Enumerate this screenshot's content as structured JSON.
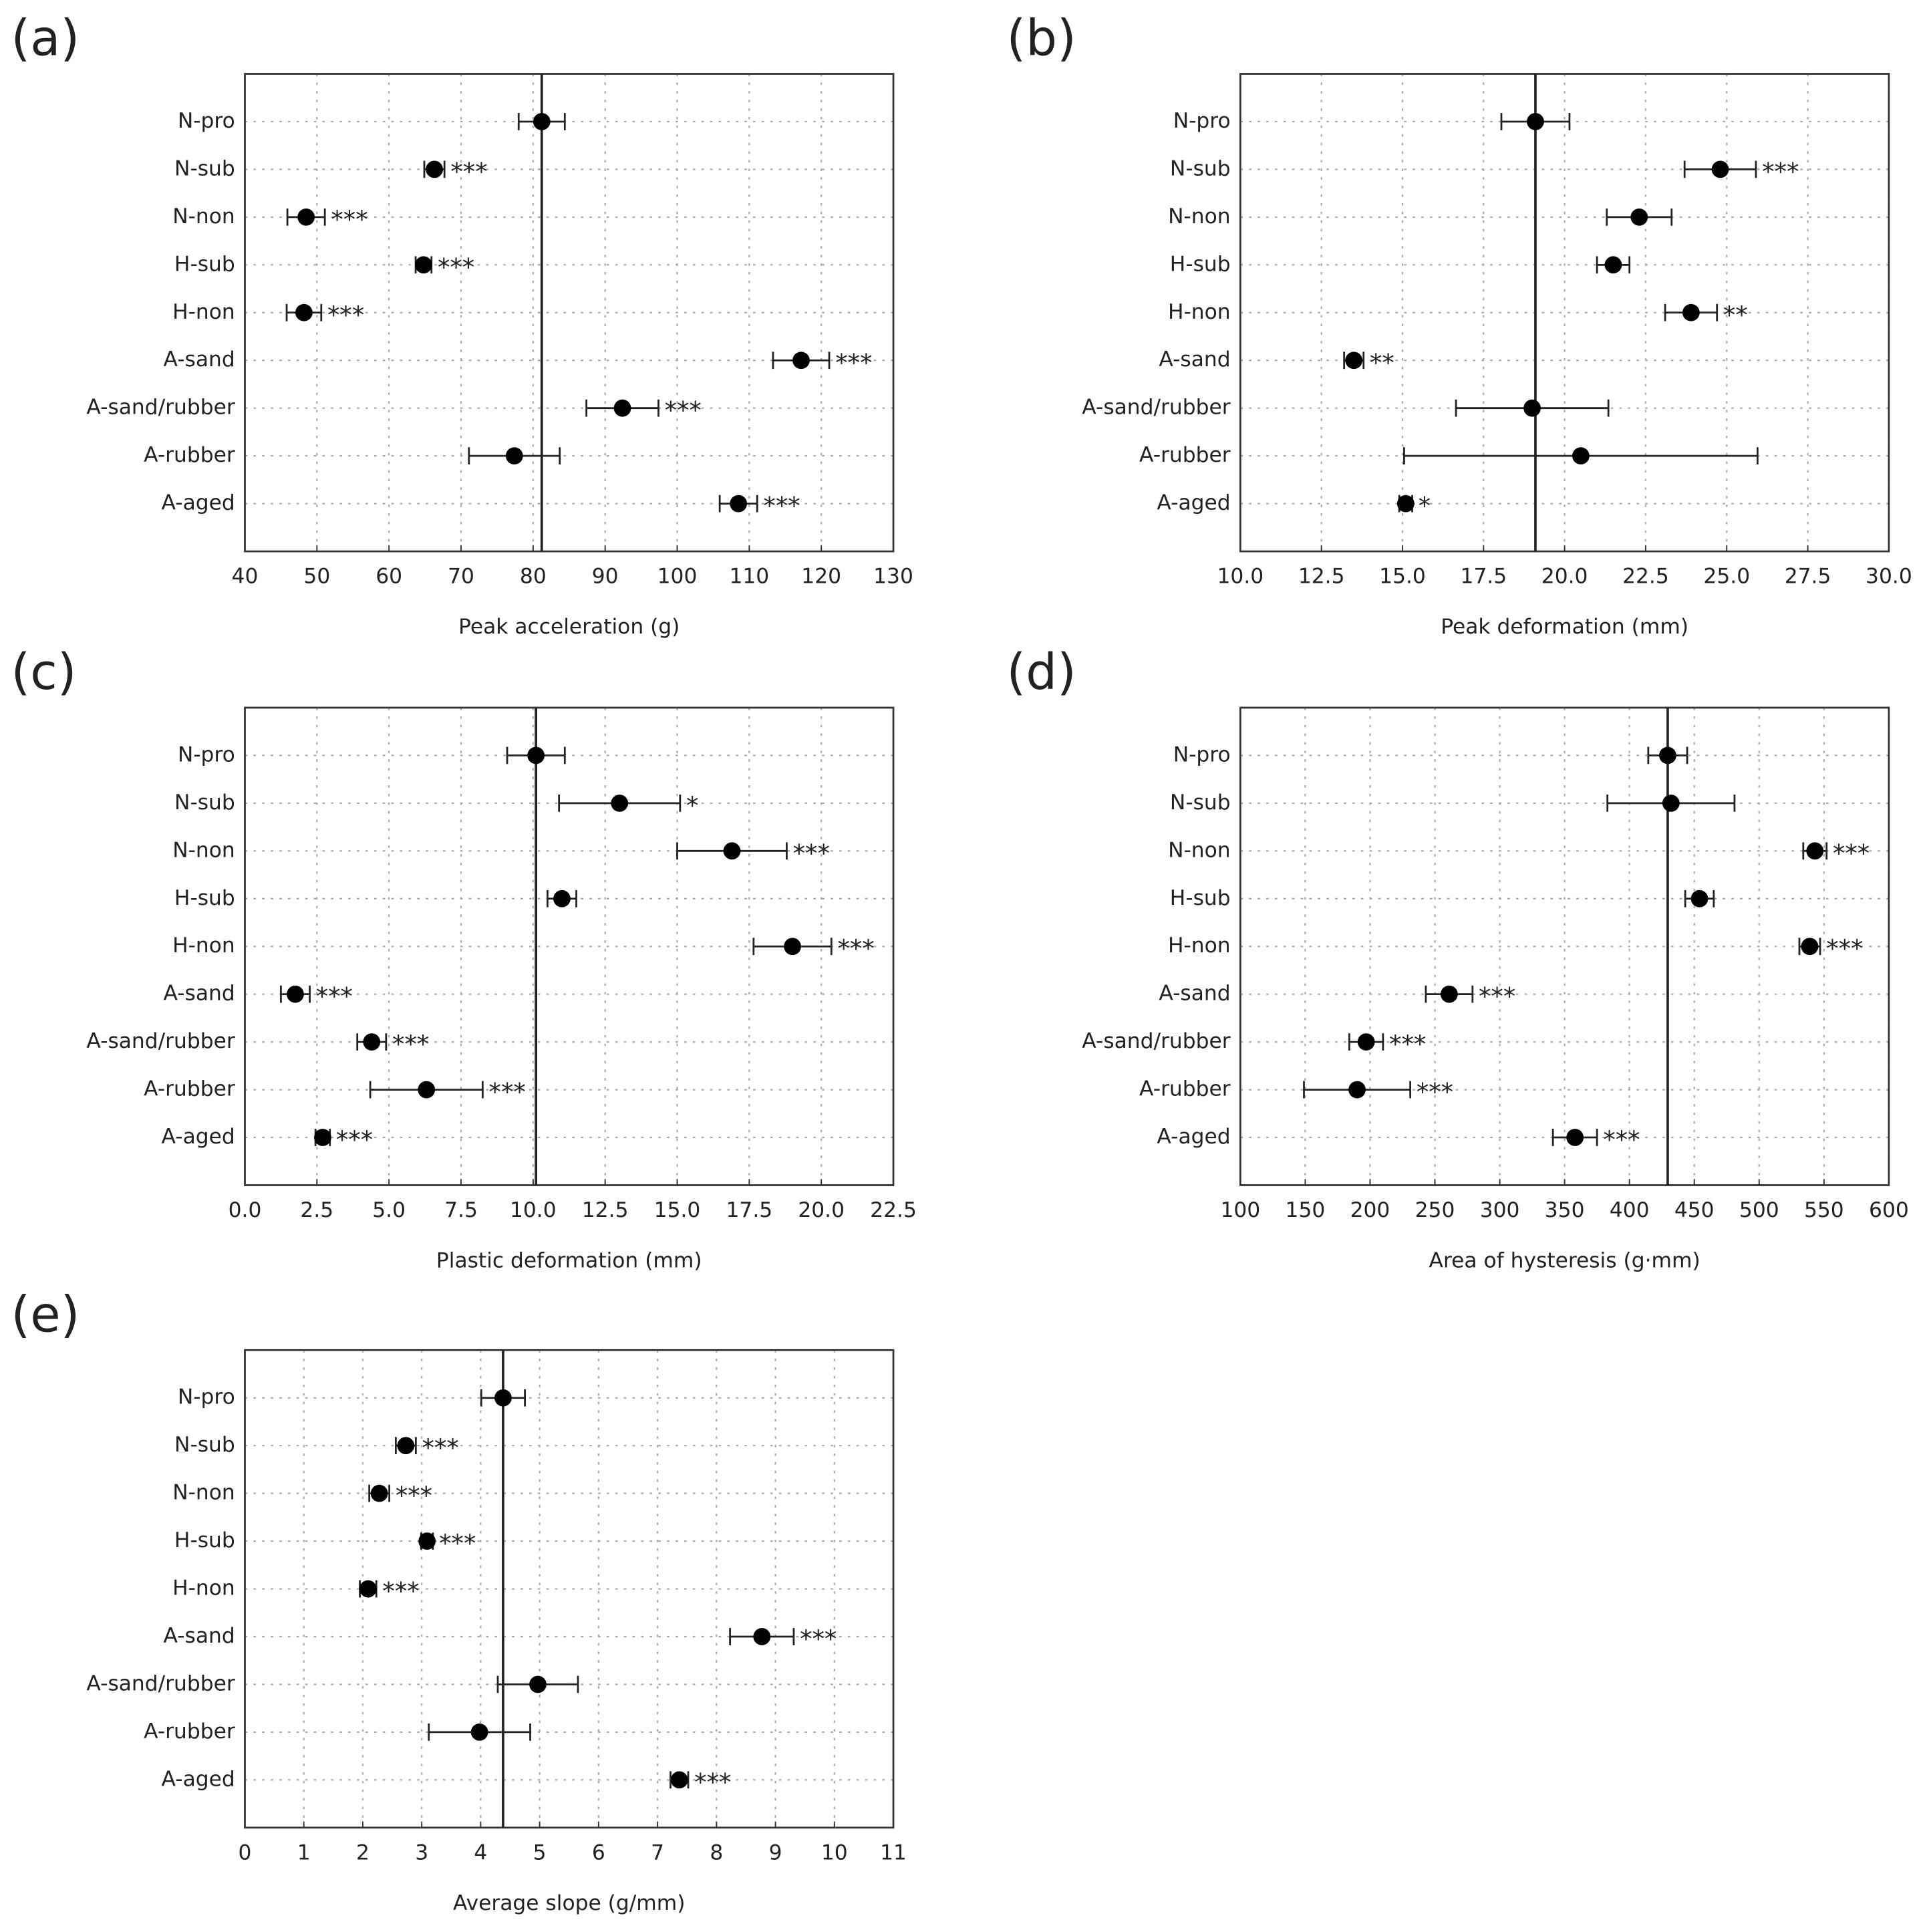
{
  "chart_data": [
    {
      "type": "errorbar",
      "panel": "(a)",
      "xlabel": "Peak acceleration (g)",
      "categories": [
        "N-pro",
        "N-sub",
        "N-non",
        "H-sub",
        "H-non",
        "A-sand",
        "A-sand/rubber",
        "A-rubber",
        "A-aged"
      ],
      "values": [
        81.2,
        66.3,
        48.5,
        64.8,
        48.2,
        117.2,
        92.4,
        77.4,
        108.5
      ],
      "errors": [
        3.2,
        1.4,
        2.6,
        1.1,
        2.4,
        3.9,
        5.0,
        6.3,
        2.6
      ],
      "annotations": [
        null,
        "***",
        "***",
        "***",
        "***",
        "***",
        "***",
        null,
        "***"
      ],
      "xlim": [
        40,
        130
      ],
      "xticks": [
        40,
        50,
        60,
        70,
        80,
        90,
        100,
        110,
        120,
        130
      ],
      "grid": true,
      "reference_line": true,
      "color": "#000000"
    },
    {
      "type": "errorbar",
      "panel": "(b)",
      "xlabel": "Peak deformation (mm)",
      "categories": [
        "N-pro",
        "N-sub",
        "N-non",
        "H-sub",
        "H-non",
        "A-sand",
        "A-sand/rubber",
        "A-rubber",
        "A-aged"
      ],
      "values": [
        19.1,
        24.8,
        22.3,
        21.5,
        23.9,
        13.5,
        19.0,
        20.5,
        15.1
      ],
      "errors": [
        1.05,
        1.1,
        1.0,
        0.5,
        0.8,
        0.3,
        2.35,
        5.45,
        0.2
      ],
      "annotations": [
        null,
        "***",
        null,
        null,
        "**",
        "**",
        null,
        null,
        "*"
      ],
      "xlim": [
        10,
        30
      ],
      "xticks": [
        {
          "value": 10,
          "label": "10.0"
        },
        12.5,
        {
          "value": 15,
          "label": "15.0"
        },
        17.5,
        {
          "value": 20,
          "label": "20.0"
        },
        22.5,
        {
          "value": 25,
          "label": "25.0"
        },
        27.5,
        {
          "value": 30,
          "label": "30.0"
        }
      ],
      "grid": true,
      "reference_line": true,
      "color": "#000000"
    },
    {
      "type": "errorbar",
      "panel": "(c)",
      "xlabel": "Plastic deformation (mm)",
      "categories": [
        "N-pro",
        "N-sub",
        "N-non",
        "H-sub",
        "H-non",
        "A-sand",
        "A-sand/rubber",
        "A-rubber",
        "A-aged"
      ],
      "values": [
        10.1,
        13.0,
        16.9,
        11.0,
        19.0,
        1.75,
        4.4,
        6.3,
        2.7
      ],
      "errors": [
        1.0,
        2.1,
        1.9,
        0.5,
        1.35,
        0.5,
        0.5,
        1.95,
        0.25
      ],
      "annotations": [
        null,
        "*",
        "***",
        null,
        "***",
        "***",
        "***",
        "***",
        "***"
      ],
      "xlim": [
        0,
        22.5
      ],
      "xticks": [
        {
          "value": 0,
          "label": "0.0"
        },
        2.5,
        {
          "value": 5,
          "label": "5.0"
        },
        7.5,
        {
          "value": 10,
          "label": "10.0"
        },
        12.5,
        {
          "value": 15,
          "label": "15.0"
        },
        17.5,
        {
          "value": 20,
          "label": "20.0"
        },
        22.5
      ],
      "grid": true,
      "reference_line": true,
      "color": "#000000"
    },
    {
      "type": "errorbar",
      "panel": "(d)",
      "xlabel": "Area of hysteresis (g·mm)",
      "categories": [
        "N-pro",
        "N-sub",
        "N-non",
        "H-sub",
        "H-non",
        "A-sand",
        "A-sand/rubber",
        "A-rubber",
        "A-aged"
      ],
      "values": [
        429.5,
        432,
        543,
        454,
        539,
        261,
        197,
        190,
        358
      ],
      "errors": [
        15,
        49,
        9,
        11,
        8,
        18,
        13,
        41,
        17
      ],
      "annotations": [
        null,
        null,
        "***",
        null,
        "***",
        "***",
        "***",
        "***",
        "***"
      ],
      "xlim": [
        100,
        600
      ],
      "xticks": [
        100,
        150,
        200,
        250,
        300,
        350,
        400,
        450,
        500,
        550,
        600
      ],
      "grid": true,
      "reference_line": true,
      "color": "#000000"
    },
    {
      "type": "errorbar",
      "panel": "(e)",
      "xlabel": "Average slope (g/mm)",
      "categories": [
        "N-pro",
        "N-sub",
        "N-non",
        "H-sub",
        "H-non",
        "A-sand",
        "A-sand/rubber",
        "A-rubber",
        "A-aged"
      ],
      "values": [
        4.38,
        2.73,
        2.28,
        3.09,
        2.09,
        8.77,
        4.97,
        3.98,
        7.37
      ],
      "errors": [
        0.37,
        0.17,
        0.17,
        0.1,
        0.14,
        0.54,
        0.68,
        0.86,
        0.15
      ],
      "annotations": [
        null,
        "***",
        "***",
        "***",
        "***",
        "***",
        null,
        null,
        "***"
      ],
      "xlim": [
        0,
        11
      ],
      "xticks": [
        0,
        1,
        2,
        3,
        4,
        5,
        6,
        7,
        8,
        9,
        10,
        11
      ],
      "grid": true,
      "reference_line": true,
      "color": "#000000"
    }
  ]
}
